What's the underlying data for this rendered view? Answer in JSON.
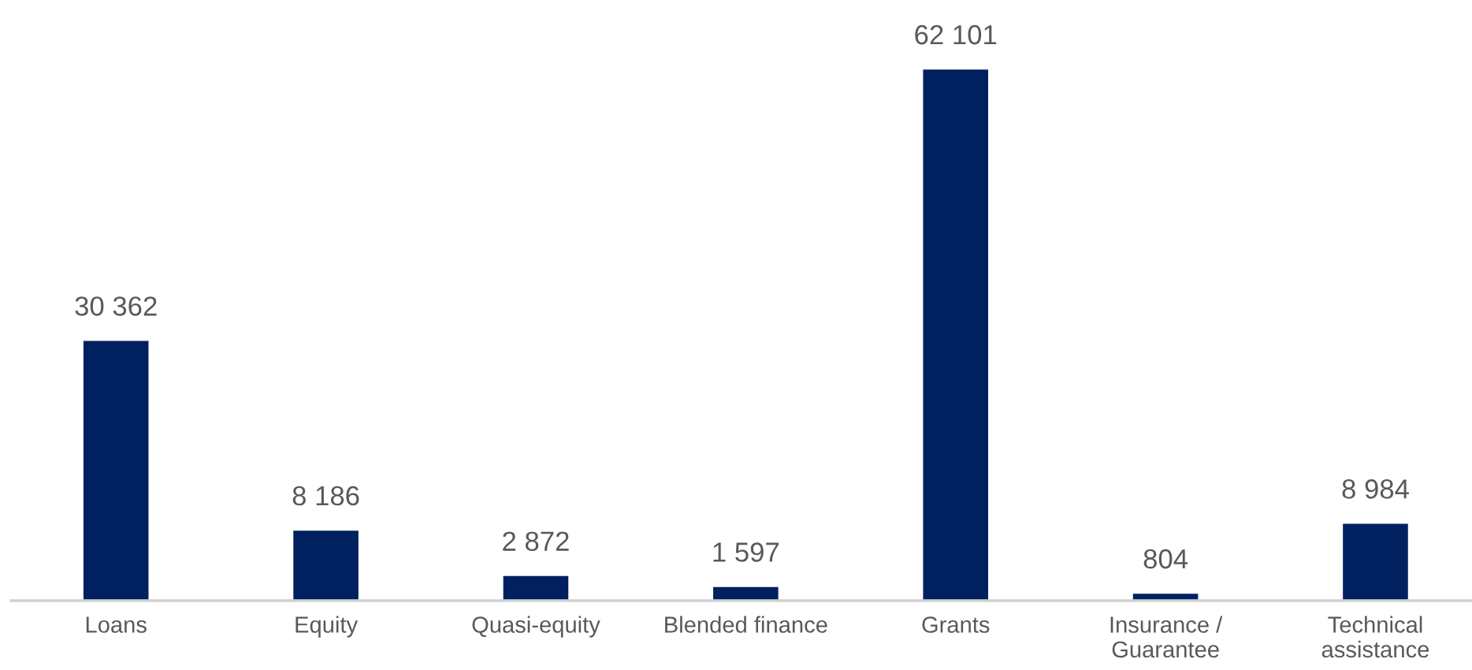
{
  "chart_data": {
    "type": "bar",
    "categories": [
      "Loans",
      "Equity",
      "Quasi-equity",
      "Blended finance",
      "Grants",
      "Insurance /\nGuarantee",
      "Technical\nassistance"
    ],
    "values": [
      30362,
      8186,
      2872,
      1597,
      62101,
      804,
      8984
    ],
    "value_labels": [
      "30 362",
      "8 186",
      "2 872",
      "1 597",
      "62 101",
      "804",
      "8 984"
    ],
    "color": "#002060",
    "grid": false,
    "legend": false
  }
}
